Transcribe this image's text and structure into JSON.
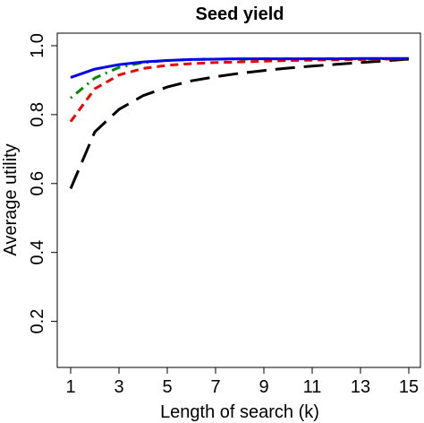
{
  "chart_data": {
    "type": "line",
    "title": "Seed yield",
    "xlabel": "Length of search (k)",
    "ylabel": "Average utility",
    "xlim": [
      1,
      15
    ],
    "ylim": [
      0.1,
      1.0
    ],
    "xticks": [
      1,
      3,
      5,
      7,
      9,
      11,
      13,
      15
    ],
    "xtick_labels": [
      "1",
      "3",
      "5",
      "7",
      "9",
      "11",
      "13",
      "15"
    ],
    "yticks": [
      0.2,
      0.4,
      0.6,
      0.8,
      1.0
    ],
    "ytick_labels": [
      "0.2",
      "0.4",
      "0.6",
      "0.8",
      "1.0"
    ],
    "grid": false,
    "legend": "none",
    "x": [
      1,
      2,
      3,
      4,
      5,
      6,
      7,
      8,
      9,
      10,
      11,
      12,
      13,
      14,
      15
    ],
    "series": [
      {
        "color": "#0000ee",
        "dash": "solid",
        "values": [
          0.908,
          0.932,
          0.945,
          0.953,
          0.957,
          0.96,
          0.961,
          0.962,
          0.962,
          0.962,
          0.962,
          0.962,
          0.963,
          0.963,
          0.963
        ]
      },
      {
        "color": "#008800",
        "dash": "dotdash",
        "values": [
          0.848,
          0.906,
          0.937,
          0.951,
          0.957,
          0.96,
          0.961,
          0.961,
          0.962,
          0.962,
          0.962,
          0.962,
          0.962,
          0.962,
          0.962
        ]
      },
      {
        "color": "#ee0000",
        "dash": "dashed",
        "values": [
          0.78,
          0.875,
          0.915,
          0.934,
          0.943,
          0.948,
          0.951,
          0.953,
          0.955,
          0.957,
          0.958,
          0.959,
          0.96,
          0.961,
          0.962
        ]
      },
      {
        "color": "#000000",
        "dash": "longdash",
        "values": [
          0.585,
          0.75,
          0.815,
          0.855,
          0.88,
          0.898,
          0.91,
          0.92,
          0.928,
          0.935,
          0.941,
          0.946,
          0.951,
          0.956,
          0.961
        ]
      }
    ]
  }
}
